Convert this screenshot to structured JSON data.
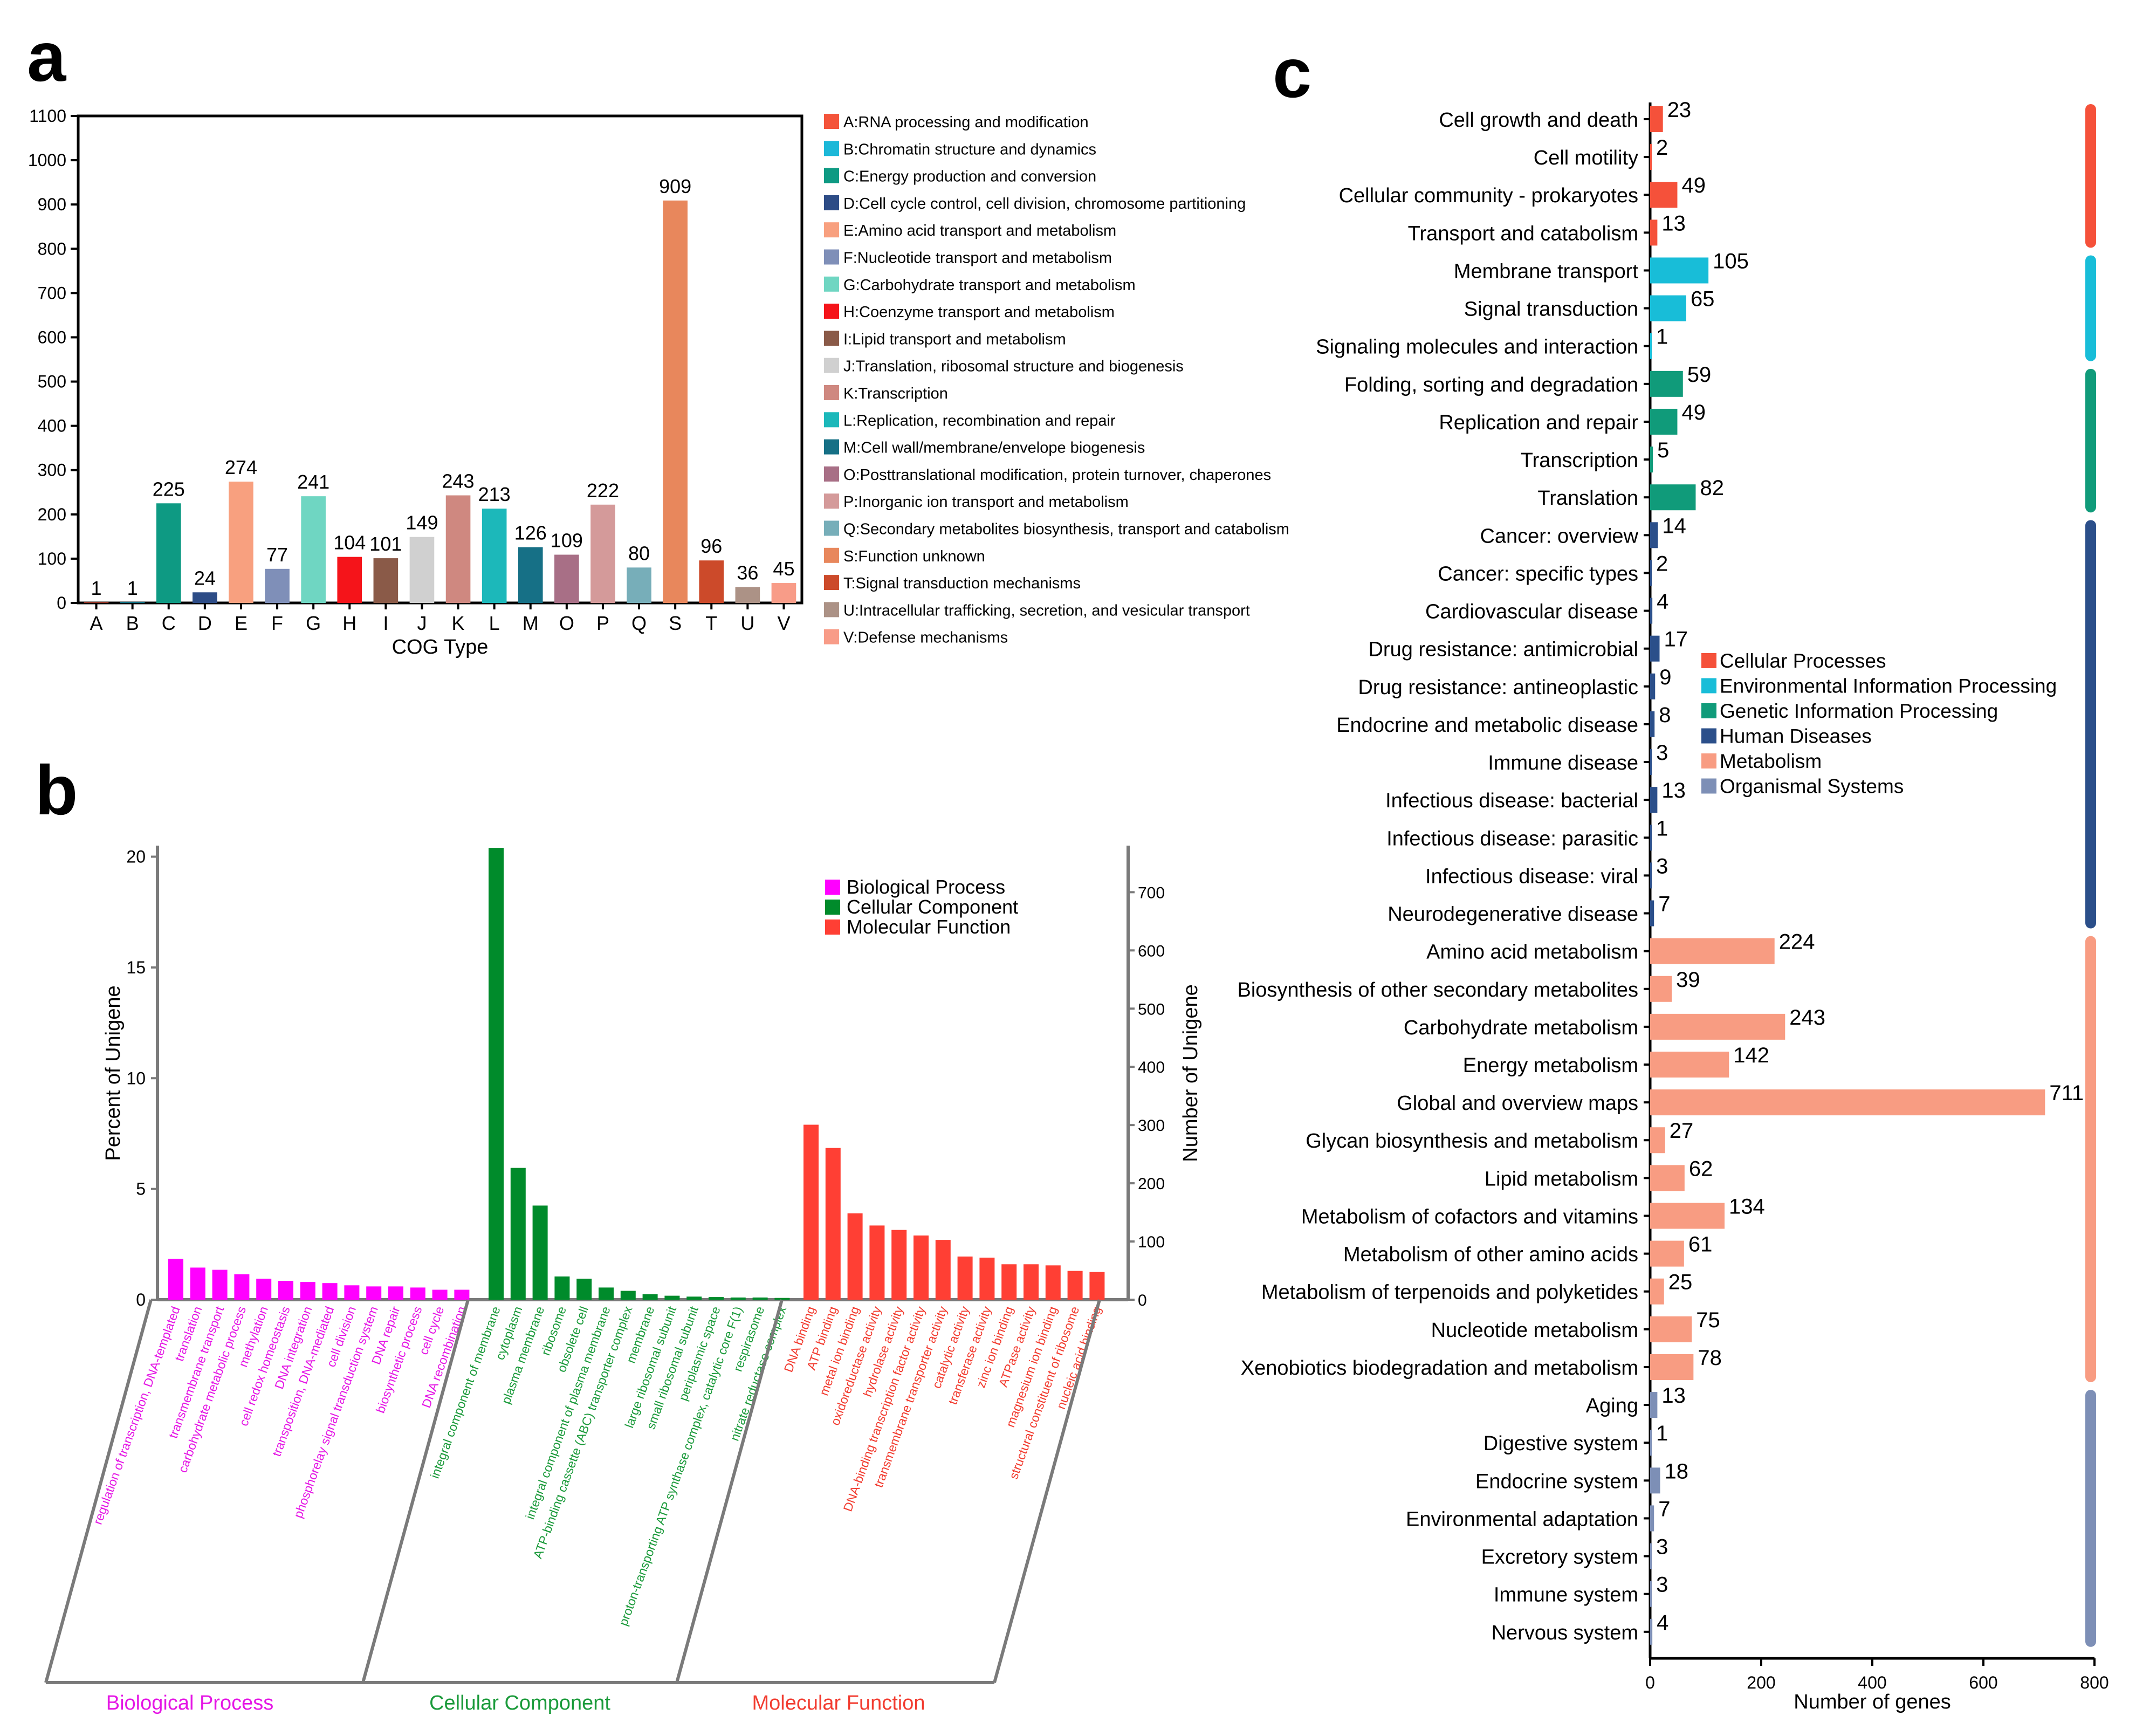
{
  "panels": {
    "a": "a",
    "b": "b",
    "c": "c"
  },
  "chart_data": [
    {
      "panel": "a",
      "type": "bar",
      "xlabel": "COG Type",
      "ylabel": "",
      "ylim": [
        0,
        1100
      ],
      "yticks": [
        0,
        100,
        200,
        300,
        400,
        500,
        600,
        700,
        800,
        900,
        1000,
        1100
      ],
      "categories": [
        "A",
        "B",
        "C",
        "D",
        "E",
        "F",
        "G",
        "H",
        "I",
        "J",
        "K",
        "L",
        "M",
        "O",
        "P",
        "Q",
        "S",
        "T",
        "U",
        "V"
      ],
      "values": [
        1,
        1,
        225,
        24,
        274,
        77,
        241,
        104,
        101,
        149,
        243,
        213,
        126,
        109,
        222,
        80,
        909,
        96,
        36,
        45
      ],
      "colors": [
        "#f4543a",
        "#1cb8d8",
        "#0e9a83",
        "#2d4c86",
        "#f8a07f",
        "#7f8fb8",
        "#6fd6c2",
        "#f5141a",
        "#8a5a48",
        "#d0d0d0",
        "#cf8880",
        "#1cb8ba",
        "#167086",
        "#a86f86",
        "#d49a9a",
        "#77aeb9",
        "#e8875c",
        "#cc4a2a",
        "#ac9286",
        "#f89c88"
      ],
      "legend": [
        "A:RNA processing and modification",
        "B:Chromatin structure and dynamics",
        "C:Energy production and conversion",
        "D:Cell cycle control, cell division, chromosome partitioning",
        "E:Amino acid transport and metabolism",
        "F:Nucleotide transport and metabolism",
        "G:Carbohydrate transport and metabolism",
        "H:Coenzyme transport and metabolism",
        "I:Lipid transport and metabolism",
        "J:Translation, ribosomal structure and biogenesis",
        "K:Transcription",
        "L:Replication, recombination and repair",
        "M:Cell wall/membrane/envelope biogenesis",
        "O:Posttranslational modification, protein turnover, chaperones",
        "P:Inorganic ion transport and metabolism",
        "Q:Secondary metabolites biosynthesis, transport and catabolism",
        "S:Function unknown",
        "T:Signal transduction mechanisms",
        "U:Intracellular trafficking, secretion, and vesicular transport",
        "V:Defense mechanisms"
      ]
    },
    {
      "panel": "b",
      "type": "bar",
      "ylabel": "Percent of Unigene",
      "y2label": "Number of Unigene",
      "ylim": [
        0,
        20.5
      ],
      "yticks": [
        0,
        5,
        10,
        15,
        20
      ],
      "y2lim": [
        0,
        780
      ],
      "y2ticks": [
        0,
        100,
        200,
        300,
        400,
        500,
        600,
        700
      ],
      "legend": [
        "Biological Process",
        "Cellular Component",
        "Molecular Function"
      ],
      "groups": [
        {
          "name": "Biological Process",
          "color": "#ff00ff",
          "text_color": "#e516e5",
          "categories": [
            "regulation of transcription, DNA-templated",
            "translation",
            "transmembrane transport",
            "carbohydrate metabolic process",
            "methylation",
            "cell redox homeostasis",
            "DNA integration",
            "transposition, DNA-mediated",
            "cell division",
            "phosphorelay signal transduction system",
            "DNA repair",
            "biosynthetic process",
            "cell cycle",
            "DNA recombination"
          ],
          "values": [
            1.85,
            1.45,
            1.35,
            1.15,
            0.95,
            0.85,
            0.8,
            0.75,
            0.65,
            0.6,
            0.6,
            0.55,
            0.45,
            0.45
          ]
        },
        {
          "name": "Cellular Component",
          "color": "#008b2b",
          "text_color": "#1a9a3a",
          "categories": [
            "integral component of membrane",
            "cytoplasm",
            "plasma membrane",
            "ribosome",
            "obsolete cell",
            "integral component of plasma membrane",
            "ATP-binding cassette (ABC) transporter complex",
            "membrane",
            "large ribosomal subunit",
            "small ribosomal subunit",
            "periplasmic space",
            "proton-transporting ATP synthase complex, catalytic core F(1)",
            "respirasome",
            "nitrate reductase complex"
          ],
          "values": [
            20.4,
            5.95,
            4.25,
            1.05,
            0.95,
            0.55,
            0.4,
            0.25,
            0.18,
            0.14,
            0.12,
            0.1,
            0.1,
            0.08
          ]
        },
        {
          "name": "Molecular Function",
          "color": "#ff3f34",
          "text_color": "#f23c30",
          "categories": [
            "DNA binding",
            "ATP binding",
            "metal ion binding",
            "oxidoreductase activity",
            "hydrolase activity",
            "DNA-binding transcription factor activity",
            "transmembrane transporter activity",
            "catalytic activity",
            "transferase activity",
            "zinc ion binding",
            "ATPase activity",
            "magnesium ion binding",
            "structural constituent of ribosome",
            "nucleic acid binding"
          ],
          "values": [
            7.9,
            6.85,
            3.9,
            3.35,
            3.15,
            2.9,
            2.7,
            1.95,
            1.9,
            1.6,
            1.6,
            1.55,
            1.3,
            1.25
          ]
        }
      ]
    },
    {
      "panel": "c",
      "type": "bar",
      "orientation": "horizontal",
      "xlabel": "Number of genes",
      "xlim": [
        0,
        800
      ],
      "xticks": [
        0,
        200,
        400,
        600,
        800
      ],
      "legend_position": "middle-right",
      "groups": [
        {
          "name": "Cellular Processes",
          "color": "#f5513a",
          "categories": [
            "Cell growth and death",
            "Cell motility",
            "Cellular community - prokaryotes",
            "Transport and catabolism"
          ],
          "values": [
            23,
            2,
            49,
            13
          ]
        },
        {
          "name": "Environmental Information Processing",
          "color": "#18bdd8",
          "categories": [
            "Membrane transport",
            "Signal transduction",
            "Signaling molecules and interaction"
          ],
          "values": [
            105,
            65,
            1
          ]
        },
        {
          "name": "Genetic Information Processing",
          "color": "#109b7a",
          "categories": [
            "Folding, sorting and degradation",
            "Replication and repair",
            "Transcription",
            "Translation"
          ],
          "values": [
            59,
            49,
            5,
            82
          ]
        },
        {
          "name": "Human Diseases",
          "color": "#2b4f8a",
          "categories": [
            "Cancer: overview",
            "Cancer: specific types",
            "Cardiovascular disease",
            "Drug resistance: antimicrobial",
            "Drug resistance: antineoplastic",
            "Endocrine and metabolic disease",
            "Immune disease",
            "Infectious disease: bacterial",
            "Infectious disease: parasitic",
            "Infectious disease: viral",
            "Neurodegenerative disease"
          ],
          "values": [
            14,
            2,
            4,
            17,
            9,
            8,
            3,
            13,
            1,
            3,
            7
          ]
        },
        {
          "name": "Metabolism",
          "color": "#f89c82",
          "categories": [
            "Amino acid metabolism",
            "Biosynthesis of other secondary metabolites",
            "Carbohydrate metabolism",
            "Energy metabolism",
            "Global and overview maps",
            "Glycan biosynthesis and metabolism",
            "Lipid metabolism",
            "Metabolism of cofactors and vitamins",
            "Metabolism of other amino acids",
            "Metabolism of terpenoids and polyketides",
            "Nucleotide metabolism",
            "Xenobiotics biodegradation and metabolism"
          ],
          "values": [
            224,
            39,
            243,
            142,
            711,
            27,
            62,
            134,
            61,
            25,
            75,
            78
          ]
        },
        {
          "name": "Organismal Systems",
          "color": "#7d8fb6",
          "categories": [
            "Aging",
            "Digestive system",
            "Endocrine system",
            "Environmental adaptation",
            "Excretory system",
            "Immune system",
            "Nervous system"
          ],
          "values": [
            13,
            1,
            18,
            7,
            3,
            3,
            4
          ]
        }
      ]
    }
  ]
}
